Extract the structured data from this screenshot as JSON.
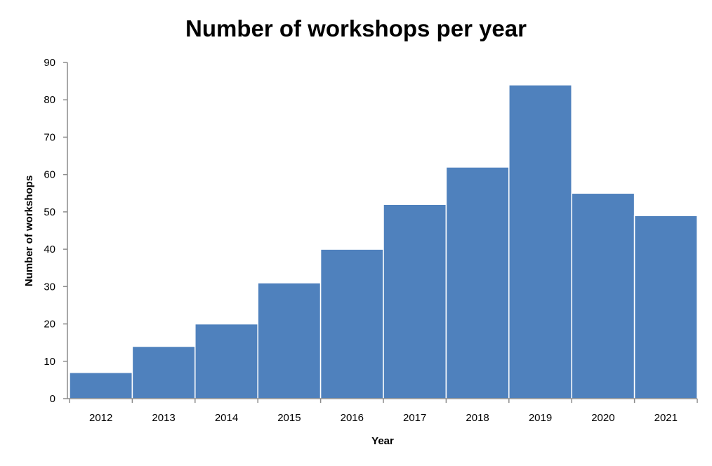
{
  "chart_data": {
    "type": "bar",
    "title": "Number of workshops per year",
    "xlabel": "Year",
    "ylabel": "Number of workshops",
    "categories": [
      "2012",
      "2013",
      "2014",
      "2015",
      "2016",
      "2017",
      "2018",
      "2019",
      "2020",
      "2021"
    ],
    "values": [
      7,
      14,
      20,
      31,
      40,
      52,
      62,
      84,
      55,
      49
    ],
    "ylim": [
      0,
      90
    ],
    "yticks": [
      0,
      10,
      20,
      30,
      40,
      50,
      60,
      70,
      80,
      90
    ],
    "grid": false,
    "legend": "none",
    "colors": {
      "bar": "#4f81bd"
    }
  }
}
